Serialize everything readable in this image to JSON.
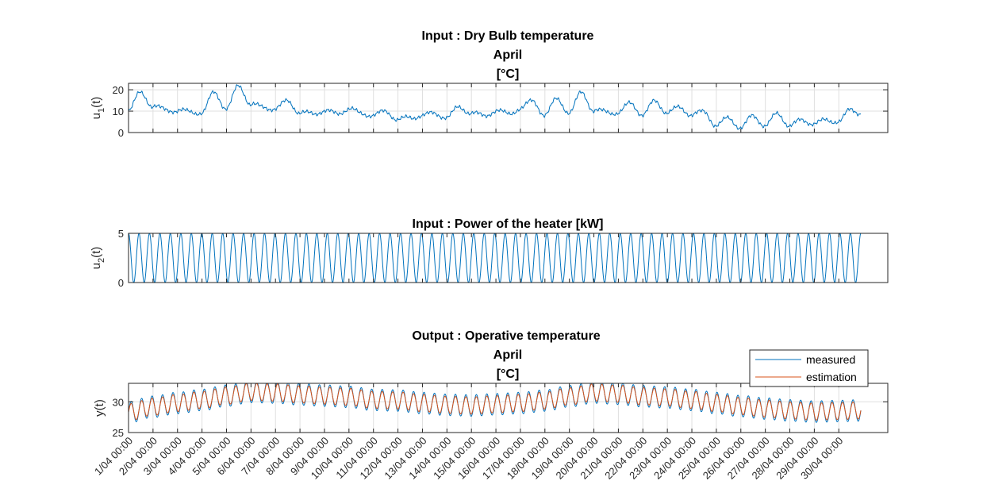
{
  "chart_data": [
    {
      "type": "line",
      "title": [
        "Input : Dry Bulb temperature",
        "April",
        "[°C]"
      ],
      "ylabel": "u",
      "ylabel_sub": "1",
      "ylabel_tail": "(t)",
      "ylim": [
        0,
        23
      ],
      "yticks": [
        0,
        10,
        20
      ],
      "grid": true,
      "color": "#0072BD",
      "x_days": [
        0,
        0.5,
        1,
        1.5,
        2,
        2.5,
        3,
        3.5,
        4,
        4.5,
        5,
        5.5,
        6,
        6.5,
        7,
        7.5,
        8,
        8.5,
        9,
        9.5,
        10,
        10.5,
        11,
        11.5,
        12,
        12.5,
        13,
        13.5,
        14,
        14.5,
        15,
        15.5,
        16,
        16.5,
        17,
        17.5,
        18,
        18.5,
        19,
        19.5,
        20,
        20.5,
        21,
        21.5,
        22,
        22.5,
        23,
        23.5,
        24,
        24.5,
        25,
        25.5,
        26,
        26.5,
        27,
        27.5,
        28,
        28.5,
        29,
        29.5,
        29.9
      ],
      "values": [
        10,
        19,
        12,
        11,
        10,
        10,
        9,
        19,
        11,
        22,
        13,
        12,
        11,
        15,
        9,
        9,
        10,
        9,
        11,
        9,
        8,
        10,
        6,
        7,
        8,
        9,
        7,
        12,
        9,
        8,
        10,
        9,
        11,
        15,
        8,
        16,
        9,
        19,
        10,
        10,
        9,
        14,
        8,
        15,
        9,
        12,
        8,
        10,
        3,
        7,
        2,
        8,
        3,
        9,
        3,
        6,
        4,
        6,
        5,
        11,
        9
      ]
    },
    {
      "type": "line",
      "title": [
        "Input : Power of the heater [kW]"
      ],
      "ylabel": "u",
      "ylabel_sub": "2",
      "ylabel_tail": "(t)",
      "ylim": [
        0,
        5
      ],
      "yticks": [
        0,
        5
      ],
      "grid": false,
      "color": "#0072BD",
      "signal": "sine between 0 and 5 kW, 70 cycles over the month (period ≈ 0.43 day)",
      "cycles": 70,
      "min": 0,
      "max": 5
    },
    {
      "type": "line",
      "title": [
        "Output :  Operative temperature",
        "April",
        "[°C]"
      ],
      "ylabel": "y(t)",
      "ylim": [
        25,
        33
      ],
      "yticks": [
        25,
        30
      ],
      "grid": true,
      "legend_position": "top-right",
      "x_days": [
        0,
        1,
        2,
        3,
        4,
        5,
        6,
        7,
        8,
        9,
        10,
        11,
        12,
        13,
        14,
        15,
        16,
        17,
        18,
        19,
        20,
        21,
        22,
        23,
        24,
        25,
        26,
        27,
        28,
        29,
        29.9
      ],
      "baseline": [
        28.3,
        29.2,
        29.8,
        30.3,
        31.0,
        31.6,
        31.5,
        31.2,
        31.0,
        30.8,
        30.3,
        30.2,
        29.8,
        29.5,
        29.4,
        29.6,
        29.8,
        30.2,
        30.9,
        31.5,
        31.3,
        30.9,
        30.7,
        30.3,
        29.8,
        29.3,
        28.9,
        28.6,
        28.4,
        28.5,
        28.6
      ],
      "oscillation_amplitude": 1.4,
      "oscillation_cycles": 70,
      "series": [
        {
          "name": "measured",
          "color": "#0072BD"
        },
        {
          "name": "estimation",
          "color": "#D95319"
        }
      ]
    }
  ],
  "x_axis": {
    "ticks": [
      "1/04 00:00",
      "2/04 00:00",
      "3/04 00:00",
      "4/04 00:00",
      "5/04 00:00",
      "6/04 00:00",
      "7/04 00:00",
      "8/04 00:00",
      "9/04 00:00",
      "10/04 00:00",
      "11/04 00:00",
      "12/04 00:00",
      "13/04 00:00",
      "14/04 00:00",
      "15/04 00:00",
      "16/04 00:00",
      "17/04 00:00",
      "18/04 00:00",
      "19/04 00:00",
      "20/04 00:00",
      "21/04 00:00",
      "22/04 00:00",
      "23/04 00:00",
      "24/04 00:00",
      "25/04 00:00",
      "26/04 00:00",
      "27/04 00:00",
      "28/04 00:00",
      "29/04 00:00",
      "30/04 00:00"
    ]
  },
  "colors": {
    "axis": "#262626",
    "grid": "#dfdfdf"
  }
}
